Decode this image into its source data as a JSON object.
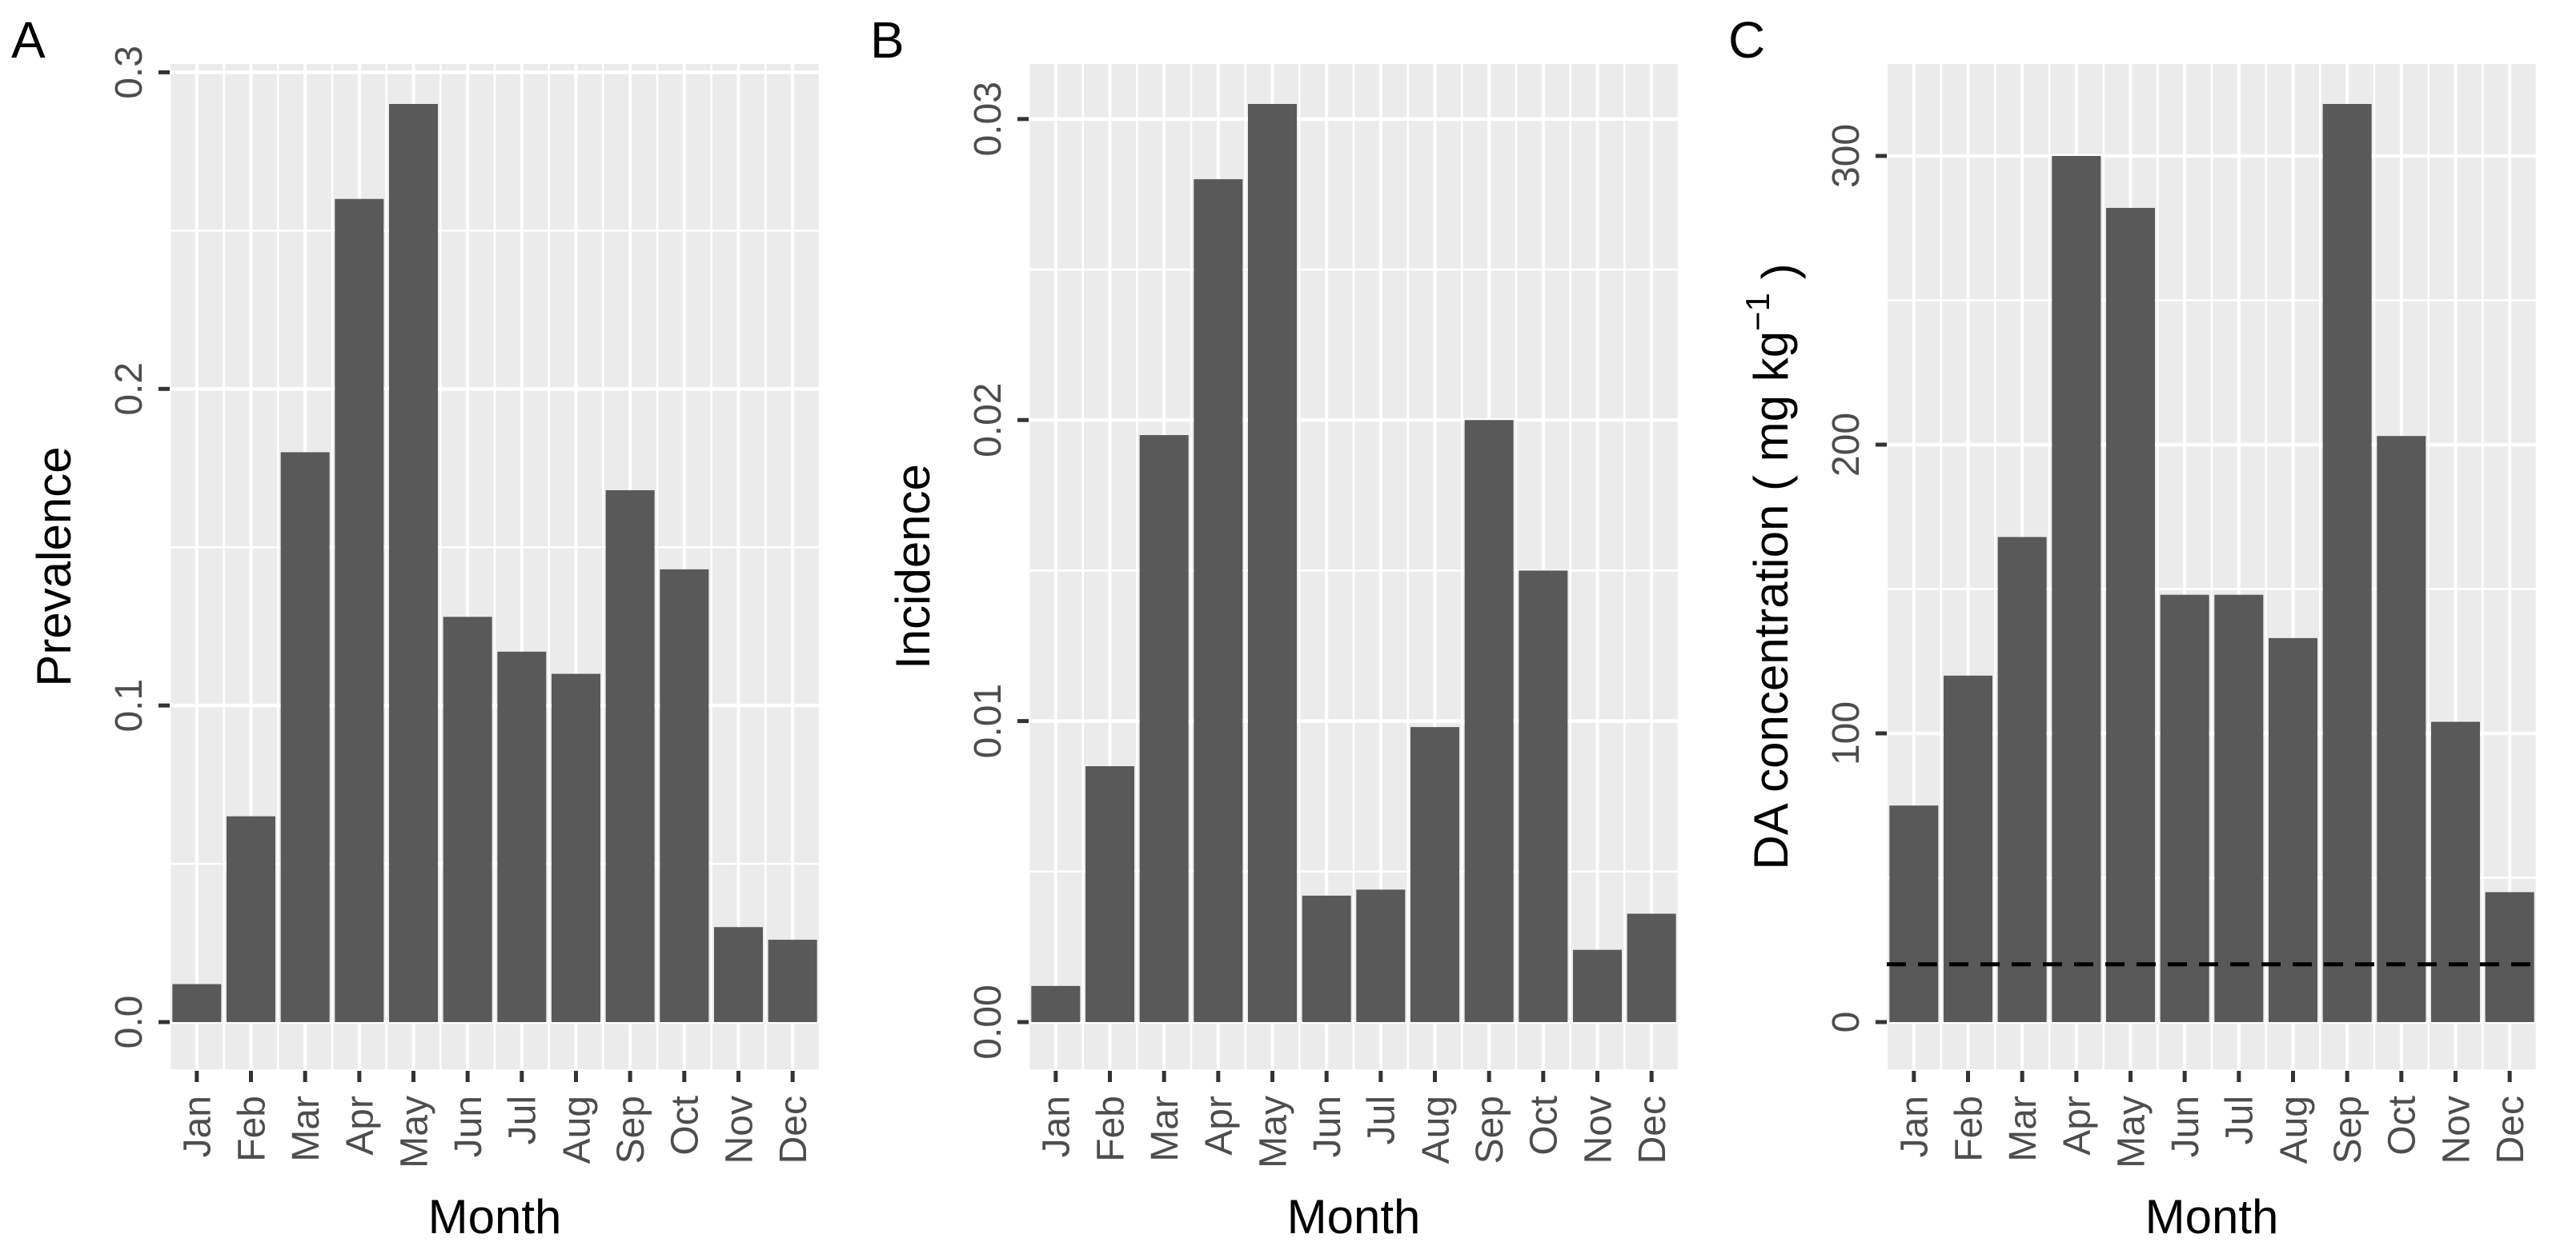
{
  "page": {
    "background": "#FFFFFF"
  },
  "colors": {
    "bar_fill": "#595959",
    "panel_background": "#EBEBEB",
    "gridline": "#FFFFFF",
    "tick_mark": "#333333",
    "axis_text": "#4D4D4D",
    "axis_title": "#000000",
    "panel_letter": "#000000",
    "reference_line": "#000000"
  },
  "chart_data": [
    {
      "type": "bar",
      "panel_label": "A",
      "title": "",
      "xlabel": "Month",
      "ylabel": "Prevalence",
      "categories": [
        "Jan",
        "Feb",
        "Mar",
        "Apr",
        "May",
        "Jun",
        "Jul",
        "Aug",
        "Sep",
        "Oct",
        "Nov",
        "Dec"
      ],
      "values": [
        0.012,
        0.065,
        0.18,
        0.26,
        0.29,
        0.128,
        0.117,
        0.11,
        0.168,
        0.143,
        0.03,
        0.026
      ],
      "ylim": [
        0,
        0.305
      ],
      "yticks": [
        0,
        0.1,
        0.2,
        0.3
      ],
      "ytick_labels": [
        "0.0",
        "0.1",
        "0.2",
        "0.3"
      ],
      "yminor": [
        0.05,
        0.15,
        0.25
      ],
      "grid": "white major+minor on gray panel",
      "legend": "none"
    },
    {
      "type": "bar",
      "panel_label": "B",
      "title": "",
      "xlabel": "Month",
      "ylabel": "Incidence",
      "categories": [
        "Jan",
        "Feb",
        "Mar",
        "Apr",
        "May",
        "Jun",
        "Jul",
        "Aug",
        "Sep",
        "Oct",
        "Nov",
        "Dec"
      ],
      "values": [
        0.0012,
        0.0085,
        0.0195,
        0.028,
        0.0305,
        0.0042,
        0.0044,
        0.0098,
        0.02,
        0.015,
        0.0024,
        0.0036
      ],
      "ylim": [
        0,
        0.032
      ],
      "yticks": [
        0,
        0.01,
        0.02,
        0.03
      ],
      "ytick_labels": [
        "0.00",
        "0.01",
        "0.02",
        "0.03"
      ],
      "yminor": [
        0.005,
        0.015,
        0.025
      ],
      "grid": "white major+minor on gray panel",
      "legend": "none"
    },
    {
      "type": "bar",
      "panel_label": "C",
      "title": "",
      "xlabel": "Month",
      "ylabel": "DA concentration ( mg kg⁻¹ )",
      "categories": [
        "Jan",
        "Feb",
        "Mar",
        "Apr",
        "May",
        "Jun",
        "Jul",
        "Aug",
        "Sep",
        "Oct",
        "Nov",
        "Dec"
      ],
      "values": [
        75,
        120,
        168,
        300,
        282,
        148,
        148,
        133,
        318,
        203,
        104,
        45
      ],
      "ylim": [
        0,
        334
      ],
      "yticks": [
        0,
        100,
        200,
        300
      ],
      "ytick_labels": [
        "0",
        "100",
        "200",
        "300"
      ],
      "yminor": [
        50,
        150,
        250
      ],
      "grid": "white major+minor on gray panel",
      "legend": "none",
      "ref_line": {
        "value": 20,
        "style": "dashed",
        "color": "#000000"
      }
    }
  ]
}
